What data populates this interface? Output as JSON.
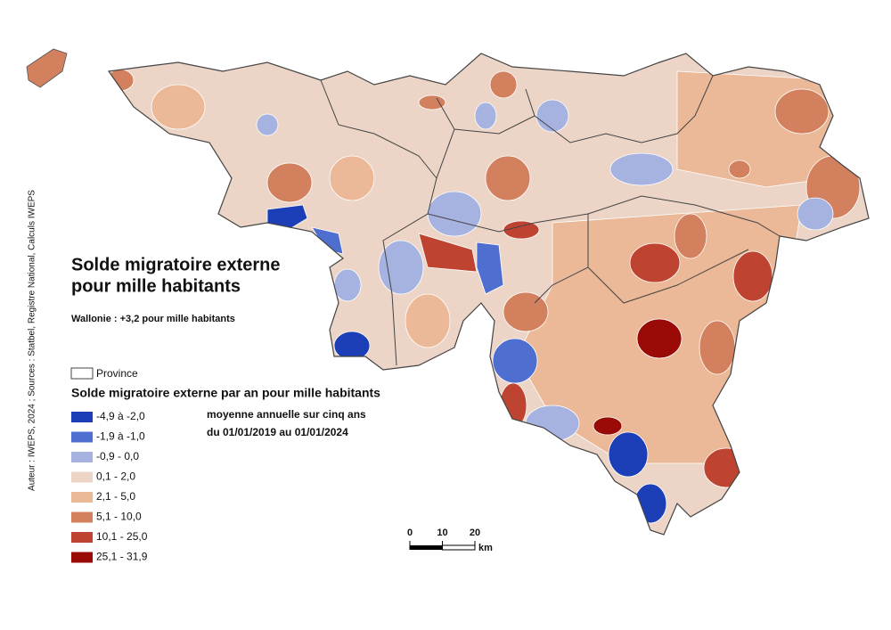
{
  "title": [
    "Solde migratoire externe",
    "pour mille habitants"
  ],
  "subtitle": "Wallonie : +3,2 pour mille habitants",
  "province_label": "Province",
  "legend": {
    "title": "Solde migratoire externe par an pour mille habitants",
    "note": [
      "moyenne annuelle sur cinq ans",
      "du 01/01/2019 au 01/01/2024"
    ],
    "items": [
      {
        "label": "-4,9 à -2,0",
        "color": "#1c3fb8"
      },
      {
        "label": "-1,9 à -1,0",
        "color": "#4f6fd0"
      },
      {
        "label": "-0,9 - 0,0",
        "color": "#a6b3e0"
      },
      {
        "label": "0,1 - 2,0",
        "color": "#ecd5c6"
      },
      {
        "label": "2,1 - 5,0",
        "color": "#ebb898"
      },
      {
        "label": "5,1 - 10,0",
        "color": "#d2805e"
      },
      {
        "label": "10,1 - 25,0",
        "color": "#be4431"
      },
      {
        "label": "25,1 - 31,9",
        "color": "#9a0a07"
      }
    ]
  },
  "scale_bar": {
    "ticks": [
      0,
      10,
      20
    ],
    "unit": "km"
  },
  "credit": "Auteur : IWEPS, 2024 ; Sources : Statbel, Registre National, Calculs IWEPS"
}
